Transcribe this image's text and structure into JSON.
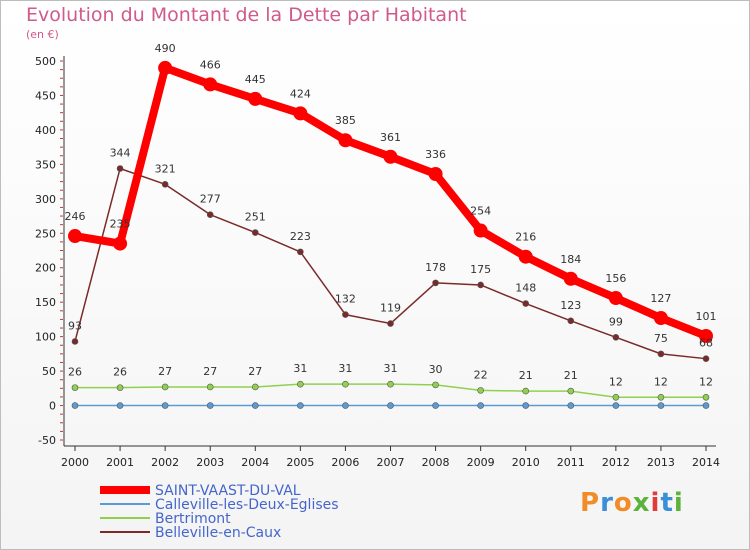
{
  "chart_data": {
    "type": "line",
    "title": "Evolution du Montant de la Dette par Habitant",
    "unit_label": "(en €)",
    "x": [
      "2000",
      "2001",
      "2002",
      "2003",
      "2004",
      "2005",
      "2006",
      "2007",
      "2008",
      "2009",
      "2010",
      "2011",
      "2012",
      "2013",
      "2014"
    ],
    "ylim": [
      -50,
      500
    ],
    "yticks": [
      -50,
      0,
      50,
      100,
      150,
      200,
      250,
      300,
      350,
      400,
      450,
      500
    ],
    "grid": false,
    "legend_position": "bottom-left",
    "series": [
      {
        "name": "SAINT-VAAST-DU-VAL",
        "color": "#ff0000",
        "values": [
          246,
          235,
          490,
          466,
          445,
          424,
          385,
          361,
          336,
          254,
          216,
          184,
          156,
          127,
          101
        ],
        "labels": [
          "246",
          "235",
          "490",
          "466",
          "445",
          "424",
          "385",
          "361",
          "336",
          "254",
          "216",
          "184",
          "156",
          "127",
          "101"
        ]
      },
      {
        "name": "Calleville-les-Deux-Eglises",
        "color": "#5b9bd5",
        "values": [
          0,
          0,
          0,
          0,
          0,
          0,
          0,
          0,
          0,
          0,
          0,
          0,
          0,
          0,
          0
        ],
        "labels": []
      },
      {
        "name": "Bertrimont",
        "color": "#8fd14f",
        "values": [
          26,
          26,
          27,
          27,
          27,
          31,
          31,
          31,
          30,
          22,
          21,
          21,
          12,
          12,
          12
        ],
        "labels": [
          "26",
          "26",
          "27",
          "27",
          "27",
          "31",
          "31",
          "31",
          "30",
          "22",
          "21",
          "21",
          "12",
          "12",
          "12"
        ]
      },
      {
        "name": "Belleville-en-Caux",
        "color": "#7b2a2a",
        "values": [
          93,
          344,
          321,
          277,
          251,
          223,
          132,
          119,
          178,
          175,
          148,
          123,
          99,
          75,
          68
        ],
        "labels": [
          "93",
          "344",
          "321",
          "277",
          "251",
          "223",
          "132",
          "119",
          "178",
          "175",
          "148",
          "123",
          "99",
          "75",
          "68"
        ]
      }
    ]
  },
  "logo": {
    "text": "Proxiti"
  }
}
